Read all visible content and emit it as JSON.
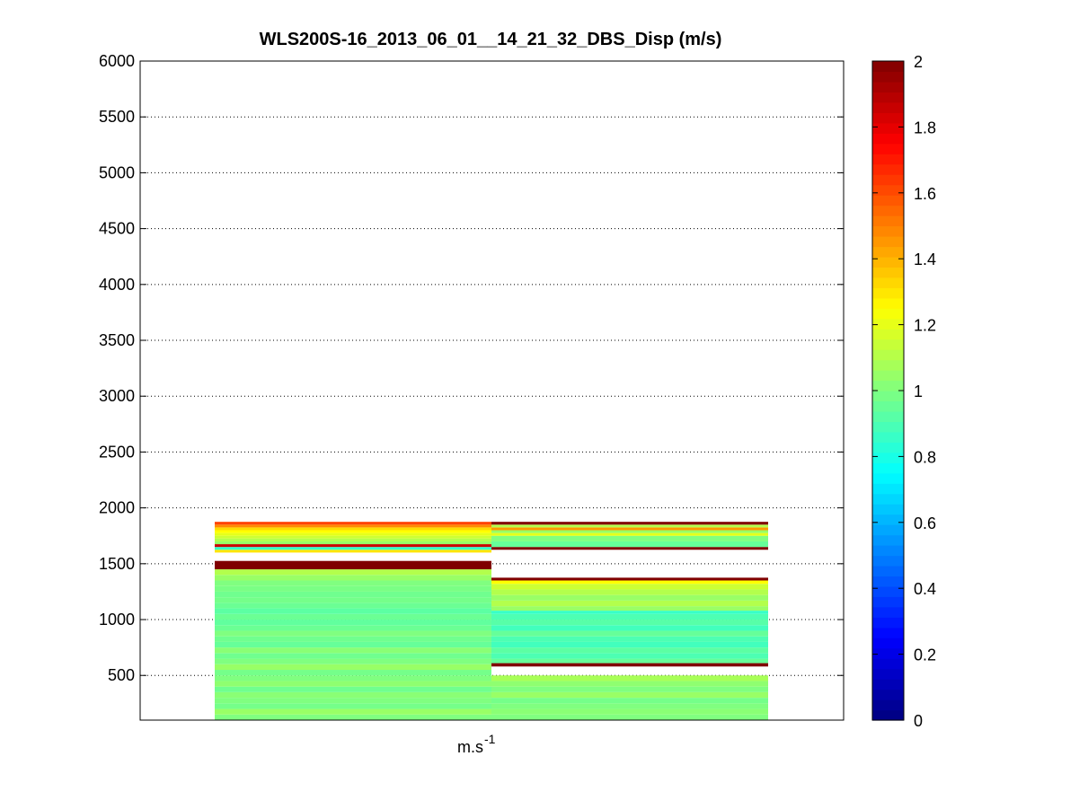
{
  "chart_data": {
    "type": "heatmap",
    "title": "WLS200S-16_2013_06_01__14_21_32_DBS_Disp (m/s)",
    "xlabel_base": "m.s",
    "xlabel_sup": "-1",
    "ylabel": "",
    "ylim": [
      100,
      6000
    ],
    "yticks": [
      500,
      1000,
      1500,
      2000,
      2500,
      3000,
      3500,
      4000,
      4500,
      5000,
      5500,
      6000
    ],
    "grid": "horizontal dotted",
    "colormap": "jet",
    "clim": [
      0,
      2
    ],
    "cticks": [
      0,
      0.2,
      0.4,
      0.6,
      0.8,
      1,
      1.2,
      1.4,
      1.6,
      1.8,
      2
    ],
    "columns": [
      {
        "bands": [
          [
            100,
            150,
            1.0
          ],
          [
            150,
            200,
            1.05
          ],
          [
            200,
            250,
            0.98
          ],
          [
            250,
            300,
            1.0
          ],
          [
            300,
            350,
            1.02
          ],
          [
            350,
            400,
            0.97
          ],
          [
            400,
            450,
            1.03
          ],
          [
            450,
            500,
            1.0
          ],
          [
            500,
            550,
            0.98
          ],
          [
            550,
            600,
            1.05
          ],
          [
            600,
            650,
            1.0
          ],
          [
            650,
            700,
            0.97
          ],
          [
            700,
            750,
            1.02
          ],
          [
            750,
            800,
            0.95
          ],
          [
            800,
            850,
            0.97
          ],
          [
            850,
            900,
            1.0
          ],
          [
            900,
            950,
            0.96
          ],
          [
            950,
            1000,
            0.94
          ],
          [
            1000,
            1050,
            0.96
          ],
          [
            1050,
            1100,
            0.93
          ],
          [
            1100,
            1150,
            0.96
          ],
          [
            1150,
            1200,
            0.98
          ],
          [
            1200,
            1250,
            0.97
          ],
          [
            1250,
            1300,
            0.99
          ],
          [
            1300,
            1350,
            1.0
          ],
          [
            1350,
            1400,
            1.05
          ],
          [
            1400,
            1450,
            1.1
          ],
          [
            1450,
            1525,
            2.0
          ],
          [
            1600,
            1625,
            1.3
          ],
          [
            1625,
            1650,
            0.85
          ],
          [
            1650,
            1675,
            1.85
          ],
          [
            1675,
            1700,
            1.05
          ],
          [
            1700,
            1725,
            1.1
          ],
          [
            1725,
            1750,
            1.15
          ],
          [
            1750,
            1775,
            1.2
          ],
          [
            1775,
            1800,
            1.25
          ],
          [
            1800,
            1825,
            1.32
          ],
          [
            1825,
            1850,
            1.48
          ],
          [
            1850,
            1875,
            1.62
          ]
        ]
      },
      {
        "bands": [
          [
            100,
            150,
            1.0
          ],
          [
            150,
            200,
            1.02
          ],
          [
            200,
            250,
            1.0
          ],
          [
            250,
            300,
            0.98
          ],
          [
            300,
            350,
            1.05
          ],
          [
            350,
            400,
            1.0
          ],
          [
            400,
            450,
            1.03
          ],
          [
            450,
            500,
            1.08
          ],
          [
            580,
            610,
            2.0
          ],
          [
            610,
            650,
            0.95
          ],
          [
            650,
            700,
            0.9
          ],
          [
            700,
            750,
            0.93
          ],
          [
            750,
            800,
            0.88
          ],
          [
            800,
            850,
            0.9
          ],
          [
            850,
            900,
            0.95
          ],
          [
            900,
            950,
            0.88
          ],
          [
            950,
            1000,
            0.92
          ],
          [
            1000,
            1050,
            0.9
          ],
          [
            1050,
            1080,
            0.86
          ],
          [
            1080,
            1120,
            1.05
          ],
          [
            1120,
            1170,
            1.1
          ],
          [
            1170,
            1220,
            1.05
          ],
          [
            1220,
            1270,
            1.1
          ],
          [
            1270,
            1320,
            1.15
          ],
          [
            1320,
            1350,
            1.25
          ],
          [
            1350,
            1375,
            2.0
          ],
          [
            1625,
            1650,
            2.0
          ],
          [
            1650,
            1700,
            0.95
          ],
          [
            1700,
            1750,
            1.0
          ],
          [
            1750,
            1775,
            1.2
          ],
          [
            1775,
            1800,
            1.05
          ],
          [
            1800,
            1825,
            1.45
          ],
          [
            1825,
            1850,
            1.1
          ],
          [
            1850,
            1875,
            2.0
          ]
        ]
      }
    ]
  }
}
